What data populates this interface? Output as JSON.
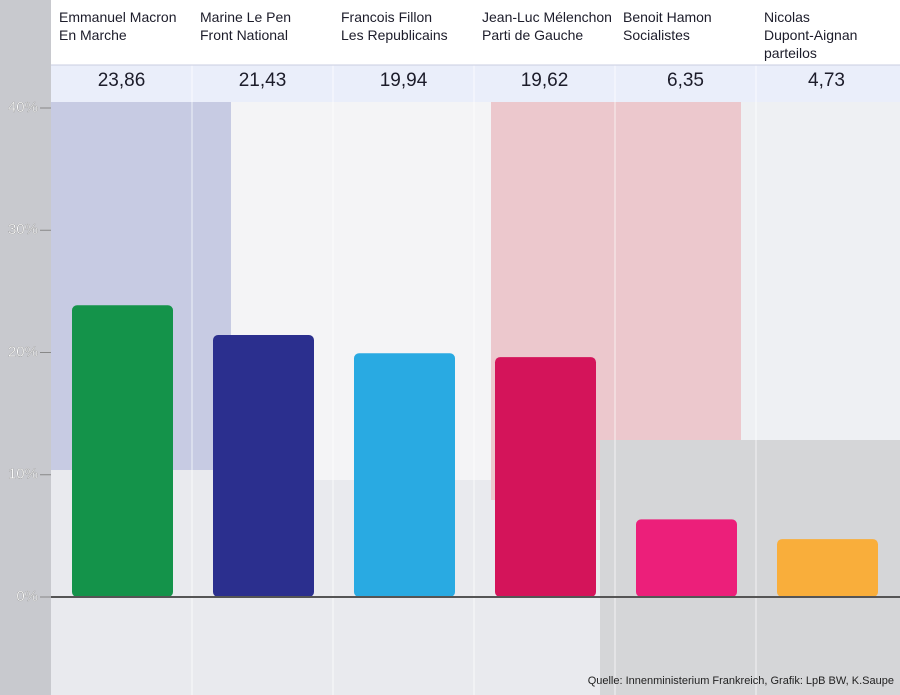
{
  "chart_data": {
    "type": "bar",
    "categories": [
      "Emmanuel Macron\nEn Marche",
      "Marine Le Pen\nFront National",
      "Francois Fillon\nLes Republicains",
      "Jean-Luc Mélenchon\nParti de Gauche",
      "Benoit Hamon\nSocialistes",
      "Nicolas\nDupont-Aignan\nparteilos"
    ],
    "values": [
      23.86,
      21.43,
      19.94,
      19.62,
      6.35,
      4.73
    ],
    "value_labels": [
      "23,86",
      "21,43",
      "19,94",
      "19,62",
      "6,35",
      "4,73"
    ],
    "colors": [
      "#14934a",
      "#2b2f8e",
      "#29aae2",
      "#d4145a",
      "#ec1f7a",
      "#f9ae3b"
    ],
    "ylim": [
      0,
      40
    ],
    "yticks": [
      {
        "value": 0,
        "label": "0%"
      },
      {
        "value": 10,
        "label": "10%"
      },
      {
        "value": 20,
        "label": "20%"
      },
      {
        "value": 30,
        "label": "30%"
      },
      {
        "value": 40,
        "label": "40%"
      }
    ],
    "source": "Quelle: Innenministerium Frankreich, Grafik: LpB BW, K.Saupe"
  }
}
